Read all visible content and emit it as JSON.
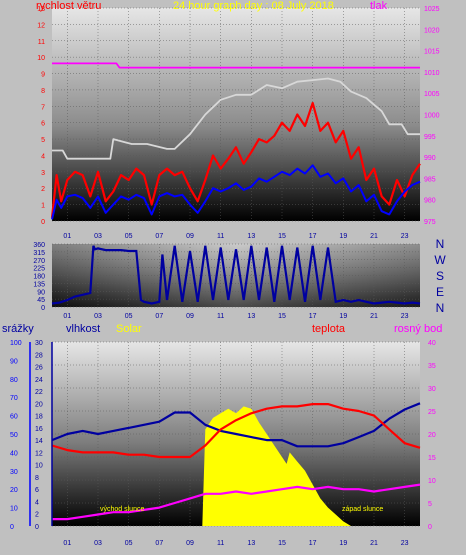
{
  "header": {
    "title": "24 hour graph day : 08 July 2018",
    "wind_label": "rychlost větru",
    "pressure_label": "tlak"
  },
  "colors": {
    "background": "#c0c0c0",
    "title": "#ffff00",
    "wind": "#ff0000",
    "wind_avg": "#0000ff",
    "pressure": "#ff00ff",
    "pressure_max": "#d8d8d8",
    "direction": "#0000a0",
    "rain": "#0000ff",
    "humidity": "#0000a0",
    "solar": "#ffff00",
    "temperature": "#ff0000",
    "dewpoint": "#ff00ff",
    "axis_text": "#0000a0"
  },
  "chart_data": [
    {
      "type": "line",
      "name": "wind-pressure",
      "x_ticks": [
        "01",
        "03",
        "05",
        "07",
        "09",
        "11",
        "13",
        "15",
        "17",
        "19",
        "21",
        "23"
      ],
      "xlim": [
        0,
        24
      ],
      "y_left_label": "rychlost větru",
      "y_left_ticks": [
        "0",
        "1",
        "2",
        "3",
        "4",
        "5",
        "6",
        "7",
        "8",
        "9",
        "10",
        "11",
        "12",
        "13"
      ],
      "ylim_left": [
        0,
        13
      ],
      "y_right_label": "tlak",
      "y_right_ticks": [
        "975",
        "980",
        "985",
        "990",
        "995",
        "1000",
        "1005",
        "1010",
        "1015",
        "1020",
        "1025"
      ],
      "ylim_right": [
        975,
        1025
      ],
      "series": [
        {
          "axis": "right",
          "color": "#ff00ff",
          "x": [
            0,
            4.2,
            4.4,
            21.0,
            21.2,
            24
          ],
          "values": [
            1012.0,
            1012.0,
            1011.0,
            1011.0,
            1011.0,
            1011.0
          ]
        },
        {
          "axis": "left",
          "color": "#d8d8d8",
          "x": [
            0,
            0.7,
            1.0,
            3.8,
            4.0,
            5.2,
            6.2,
            7.5,
            8.0,
            9.0,
            10.0,
            11.0,
            12.0,
            13.0,
            14.0,
            15.0,
            16.0,
            17.0,
            18.0,
            18.8,
            19.5,
            20.5,
            21.0,
            21.5,
            22.0,
            22.8,
            23.2,
            24.0
          ],
          "values": [
            4.3,
            4.3,
            3.8,
            3.8,
            5.0,
            4.7,
            4.7,
            4.4,
            4.4,
            5.3,
            6.5,
            7.4,
            7.7,
            7.7,
            8.3,
            8.1,
            8.5,
            8.6,
            8.7,
            8.5,
            7.9,
            7.5,
            7.1,
            6.7,
            5.9,
            5.9,
            5.3,
            5.3
          ]
        },
        {
          "axis": "left",
          "color": "#ff0000",
          "x": [
            0,
            0.3,
            0.6,
            1.0,
            1.5,
            2.0,
            2.5,
            3.0,
            3.5,
            4.0,
            4.5,
            5.0,
            5.5,
            6.0,
            6.5,
            7.0,
            7.5,
            8.0,
            8.5,
            9.0,
            9.5,
            10.0,
            10.5,
            11.0,
            11.5,
            12.0,
            12.5,
            13.0,
            13.5,
            14.0,
            14.5,
            15.0,
            15.5,
            16.0,
            16.5,
            17.0,
            17.5,
            18.0,
            18.5,
            19.0,
            19.5,
            20.0,
            20.5,
            21.0,
            21.5,
            22.0,
            22.5,
            23.0,
            23.5,
            24.0
          ],
          "values": [
            0.2,
            2.8,
            1.2,
            2.5,
            3.0,
            2.8,
            1.5,
            3.0,
            1.2,
            1.8,
            2.8,
            2.5,
            3.2,
            2.8,
            1.0,
            2.8,
            3.2,
            2.8,
            3.0,
            2.0,
            1.2,
            2.5,
            4.0,
            3.2,
            3.8,
            4.5,
            3.5,
            4.2,
            5.0,
            4.8,
            5.2,
            6.0,
            5.5,
            6.5,
            5.8,
            7.2,
            5.5,
            6.0,
            4.8,
            5.5,
            3.8,
            4.5,
            2.5,
            3.2,
            1.5,
            1.0,
            2.5,
            1.5,
            2.8,
            3.5
          ]
        },
        {
          "axis": "left",
          "color": "#0000ff",
          "x": [
            0,
            0.3,
            0.6,
            1.0,
            1.5,
            2.0,
            2.5,
            3.0,
            3.5,
            4.0,
            4.5,
            5.0,
            5.5,
            6.0,
            6.5,
            7.0,
            7.5,
            8.0,
            8.5,
            9.0,
            9.5,
            10.0,
            10.5,
            11.0,
            11.5,
            12.0,
            12.5,
            13.0,
            13.5,
            14.0,
            14.5,
            15.0,
            15.5,
            16.0,
            16.5,
            17.0,
            17.5,
            18.0,
            18.5,
            19.0,
            19.5,
            20.0,
            20.5,
            21.0,
            21.5,
            22.0,
            22.5,
            23.0,
            23.5,
            24.0
          ],
          "values": [
            0.1,
            1.3,
            0.8,
            1.5,
            1.6,
            1.4,
            0.8,
            1.5,
            0.5,
            1.0,
            1.5,
            1.3,
            1.6,
            1.4,
            0.4,
            1.5,
            1.7,
            1.5,
            1.6,
            1.0,
            0.5,
            1.2,
            2.0,
            1.8,
            2.0,
            2.3,
            1.9,
            2.1,
            2.6,
            2.4,
            2.7,
            3.0,
            2.8,
            3.2,
            2.9,
            3.4,
            2.7,
            2.9,
            2.3,
            2.6,
            1.8,
            2.2,
            1.2,
            1.6,
            0.6,
            0.4,
            1.2,
            1.8,
            2.2,
            2.4
          ]
        }
      ]
    },
    {
      "type": "line",
      "name": "wind-direction",
      "x_ticks": [
        "01",
        "03",
        "05",
        "07",
        "09",
        "11",
        "13",
        "15",
        "17",
        "19",
        "21",
        "23"
      ],
      "xlim": [
        0,
        24
      ],
      "y_ticks": [
        "0",
        "45",
        "90",
        "135",
        "180",
        "225",
        "270",
        "315",
        "360"
      ],
      "ylim": [
        0,
        360
      ],
      "direction_labels": [
        "N",
        "W",
        "S",
        "E",
        "N"
      ],
      "series": [
        {
          "color": "#0000a0",
          "x": [
            0,
            0.5,
            1.0,
            1.5,
            2.0,
            2.5,
            2.7,
            2.8,
            3.0,
            3.5,
            4.0,
            4.5,
            5.0,
            5.5,
            5.8,
            6.0,
            6.5,
            7.0,
            7.2,
            7.5,
            8.0,
            8.5,
            9.0,
            9.5,
            10.0,
            10.5,
            11.0,
            11.5,
            12.0,
            12.5,
            13.0,
            13.5,
            14.0,
            14.5,
            15.0,
            15.5,
            16.0,
            16.5,
            17.0,
            17.5,
            18.0,
            18.5,
            19.0,
            19.5,
            20.0,
            20.5,
            21.0,
            21.5,
            22.0,
            22.5,
            23.0,
            23.5,
            24.0
          ],
          "values": [
            20,
            25,
            40,
            60,
            70,
            80,
            350,
            330,
            335,
            325,
            325,
            325,
            320,
            320,
            40,
            30,
            20,
            30,
            300,
            40,
            350,
            30,
            320,
            30,
            350,
            40,
            340,
            40,
            330,
            40,
            350,
            40,
            340,
            30,
            350,
            40,
            340,
            30,
            350,
            40,
            340,
            30,
            40,
            30,
            40,
            30,
            20,
            25,
            30,
            25,
            20,
            25,
            20
          ]
        }
      ]
    },
    {
      "type": "line",
      "name": "rain-humidity-solar-temp-dew",
      "x_ticks": [
        "01",
        "03",
        "05",
        "07",
        "09",
        "11",
        "13",
        "15",
        "17",
        "19",
        "21",
        "23"
      ],
      "xlim": [
        0,
        24
      ],
      "labels": [
        "srážky",
        "vlhkost",
        "Solar",
        "teplota",
        "rosný bod"
      ],
      "rain_ticks": [
        "0",
        "10",
        "20",
        "30",
        "40",
        "50",
        "60",
        "70",
        "80",
        "90",
        "100"
      ],
      "humidity_ticks": [
        "0",
        "2",
        "4",
        "6",
        "8",
        "10",
        "12",
        "14",
        "16",
        "18",
        "20",
        "22",
        "24",
        "26",
        "28",
        "30"
      ],
      "solar_ticks": [
        "0",
        "5",
        "10",
        "15",
        "20",
        "25",
        "30",
        "35",
        "40"
      ],
      "temp_ticks": [
        "0",
        "5",
        "10",
        "15",
        "20",
        "25",
        "30",
        "35",
        "40"
      ],
      "ylim_rain": [
        0,
        100
      ],
      "ylim_humidity": [
        0,
        30
      ],
      "ylim_temp": [
        0,
        40
      ],
      "annotations": [
        "východ slunce",
        "západ slunce"
      ],
      "series": [
        {
          "name": "Solar",
          "color": "#ffff00",
          "x": [
            0,
            9.8,
            10.0,
            10.5,
            11.0,
            11.5,
            12.0,
            12.5,
            13.0,
            13.5,
            14.0,
            14.5,
            15.0,
            15.3,
            15.5,
            16.0,
            16.5,
            17.0,
            17.5,
            18.0,
            18.5,
            19.0,
            19.5,
            24.0
          ],
          "values": [
            0,
            0,
            21,
            23.5,
            24.5,
            25.5,
            24.5,
            26.0,
            25.5,
            22.5,
            20.0,
            17.5,
            15.0,
            13.5,
            16.0,
            14.0,
            12.0,
            9.0,
            6.0,
            4.0,
            2.5,
            1.0,
            0,
            0
          ]
        },
        {
          "name": "vlhkost",
          "color": "#0000a0",
          "x": [
            0,
            1.0,
            2.0,
            3.0,
            4.0,
            5.0,
            6.0,
            7.0,
            8.0,
            9.0,
            10.0,
            11.0,
            12.0,
            13.0,
            14.0,
            15.0,
            16.0,
            17.0,
            18.0,
            19.0,
            20.0,
            21.0,
            22.0,
            23.0,
            24.0
          ],
          "values": [
            14.0,
            15.0,
            15.5,
            15.0,
            15.5,
            16.0,
            16.5,
            17.0,
            18.5,
            18.5,
            16.5,
            15.5,
            15.0,
            14.5,
            14.0,
            14.0,
            13.0,
            13.0,
            13.0,
            13.5,
            14.5,
            15.5,
            17.5,
            19.0,
            20.0
          ]
        },
        {
          "name": "teplota",
          "color": "#ff0000",
          "x": [
            0,
            1.0,
            2.0,
            3.0,
            4.0,
            5.0,
            6.0,
            7.0,
            8.0,
            9.0,
            10.0,
            11.0,
            12.0,
            13.0,
            14.0,
            15.0,
            16.0,
            17.0,
            18.0,
            19.0,
            20.0,
            21.0,
            22.0,
            23.0,
            24.0
          ],
          "values": [
            17.5,
            16.5,
            16.0,
            16.0,
            16.0,
            15.5,
            15.5,
            15.0,
            15.0,
            15.0,
            17.5,
            21.0,
            23.0,
            24.5,
            25.5,
            26.0,
            26.0,
            26.5,
            26.5,
            25.5,
            25.0,
            24.0,
            21.0,
            18.0,
            17.0
          ]
        },
        {
          "name": "rosný bod",
          "color": "#ff00ff",
          "x": [
            0,
            1.0,
            2.0,
            3.0,
            4.0,
            5.0,
            6.0,
            7.0,
            8.0,
            9.0,
            10.0,
            11.0,
            12.0,
            13.0,
            14.0,
            15.0,
            16.0,
            17.0,
            18.0,
            19.0,
            20.0,
            21.0,
            22.0,
            23.0,
            24.0
          ],
          "values": [
            1.5,
            1.5,
            2.0,
            2.5,
            3.0,
            3.0,
            3.5,
            4.0,
            5.0,
            6.0,
            7.0,
            7.0,
            7.5,
            7.0,
            7.5,
            8.0,
            8.5,
            8.0,
            8.5,
            8.0,
            8.0,
            7.5,
            8.0,
            8.5,
            9.0
          ]
        }
      ]
    }
  ]
}
